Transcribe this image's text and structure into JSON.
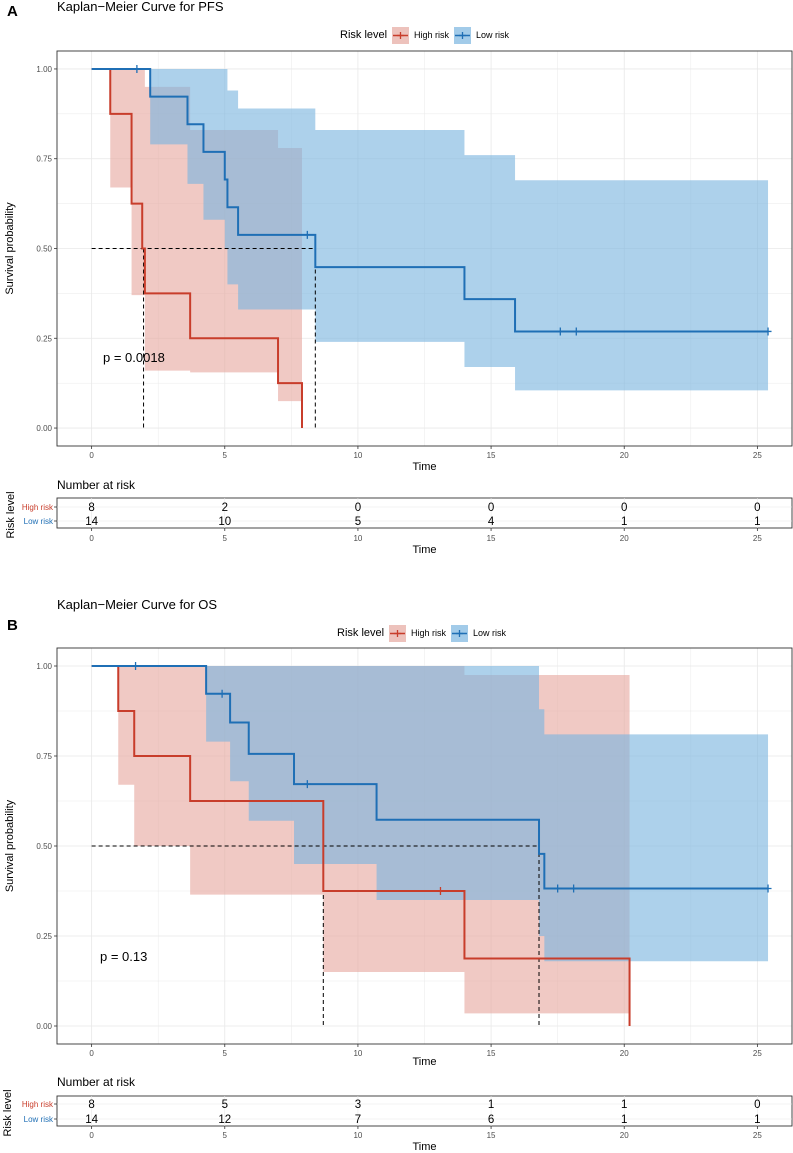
{
  "colors": {
    "high": "#c83d2b",
    "low": "#1f6fb5",
    "high_fill": "#e6a8a0",
    "low_fill": "#7ab5df",
    "grid": "#e8e8e8"
  },
  "chart_data": [
    {
      "panel": "A",
      "type": "kaplan-meier",
      "title": "Kaplan−Meier Curve for PFS",
      "legend": {
        "title": "Risk level",
        "entries": [
          "High risk",
          "Low risk"
        ]
      },
      "xlabel": "Time",
      "ylabel": "Survival probability",
      "xlim": [
        -1.3,
        26.3
      ],
      "ylim": [
        -0.05,
        1.05
      ],
      "xticks": [
        0,
        5,
        10,
        15,
        20,
        25
      ],
      "yticks": [
        0,
        0.25,
        0.5,
        0.75,
        1
      ],
      "ytick_labels": [
        "0.00",
        "0.25",
        "0.50",
        "0.75",
        "1.00"
      ],
      "pvalue": "p = 0.0018",
      "median_times": [
        1.95,
        8.4
      ],
      "series": [
        {
          "name": "High risk",
          "times": [
            0,
            0.7,
            1.5,
            1.9,
            2.0,
            3.7,
            7.0,
            7.9
          ],
          "surv": [
            1.0,
            0.875,
            0.625,
            0.5,
            0.375,
            0.25,
            0.125,
            0.0
          ],
          "lower": [
            1.0,
            0.67,
            0.37,
            0.37,
            0.16,
            0.155,
            0.075,
            0.0
          ],
          "upper": [
            1.0,
            1.0,
            1.0,
            1.0,
            0.95,
            0.83,
            0.78,
            0.78
          ],
          "censor": []
        },
        {
          "name": "Low risk",
          "times": [
            0,
            2.2,
            3.6,
            4.2,
            5.0,
            5.1,
            5.5,
            8.4,
            14.0,
            15.9,
            25.4
          ],
          "surv": [
            1.0,
            0.923,
            0.846,
            0.769,
            0.692,
            0.615,
            0.538,
            0.448,
            0.359,
            0.269,
            0.269
          ],
          "lower": [
            1.0,
            0.79,
            0.68,
            0.58,
            0.5,
            0.4,
            0.33,
            0.24,
            0.17,
            0.105,
            0.105
          ],
          "upper": [
            1.0,
            1.0,
            1.0,
            1.0,
            1.0,
            0.94,
            0.89,
            0.83,
            0.76,
            0.69,
            0.69
          ],
          "censor": [
            1.7,
            8.1,
            17.6,
            18.2,
            25.4
          ]
        }
      ],
      "risk_table": {
        "title": "Number at risk",
        "row_title": "Risk level",
        "rows": [
          {
            "label": "High risk",
            "values": [
              8,
              2,
              0,
              0,
              0,
              0
            ]
          },
          {
            "label": "Low risk",
            "values": [
              14,
              10,
              5,
              4,
              1,
              1
            ]
          }
        ],
        "xlabel": "Time"
      }
    },
    {
      "panel": "B",
      "type": "kaplan-meier",
      "title": "Kaplan−Meier Curve for OS",
      "legend": {
        "title": "Risk level",
        "entries": [
          "High risk",
          "Low risk"
        ]
      },
      "xlabel": "Time",
      "ylabel": "Survival probability",
      "xlim": [
        -1.3,
        26.3
      ],
      "ylim": [
        -0.05,
        1.05
      ],
      "xticks": [
        0,
        5,
        10,
        15,
        20,
        25
      ],
      "yticks": [
        0,
        0.25,
        0.5,
        0.75,
        1
      ],
      "ytick_labels": [
        "0.00",
        "0.25",
        "0.50",
        "0.75",
        "1.00"
      ],
      "pvalue": "p = 0.13",
      "median_times": [
        8.7,
        16.8
      ],
      "series": [
        {
          "name": "High risk",
          "times": [
            0,
            1.0,
            1.6,
            3.7,
            8.7,
            14.0,
            20.2
          ],
          "surv": [
            1.0,
            0.875,
            0.75,
            0.625,
            0.375,
            0.1875,
            0.0
          ],
          "lower": [
            1.0,
            0.67,
            0.5,
            0.365,
            0.15,
            0.035,
            0.0
          ],
          "upper": [
            1.0,
            1.0,
            1.0,
            1.0,
            1.0,
            0.975,
            0.975
          ],
          "censor": [
            13.1
          ]
        },
        {
          "name": "Low risk",
          "times": [
            0,
            4.3,
            5.2,
            5.9,
            7.6,
            10.7,
            16.8,
            17.0,
            25.4
          ],
          "surv": [
            1.0,
            0.923,
            0.843,
            0.756,
            0.672,
            0.573,
            0.478,
            0.382,
            0.382
          ],
          "lower": [
            1.0,
            0.79,
            0.68,
            0.57,
            0.45,
            0.35,
            0.25,
            0.18,
            0.18
          ],
          "upper": [
            1.0,
            1.0,
            1.0,
            1.0,
            1.0,
            1.0,
            0.88,
            0.81,
            0.81
          ],
          "censor": [
            1.65,
            4.9,
            8.1,
            17.5,
            18.1,
            25.4
          ]
        }
      ],
      "risk_table": {
        "title": "Number at risk",
        "row_title": "Risk level",
        "rows": [
          {
            "label": "High risk",
            "values": [
              8,
              5,
              3,
              1,
              1,
              0
            ]
          },
          {
            "label": "Low risk",
            "values": [
              14,
              12,
              7,
              6,
              1,
              1
            ]
          }
        ],
        "xlabel": "Time"
      }
    }
  ]
}
